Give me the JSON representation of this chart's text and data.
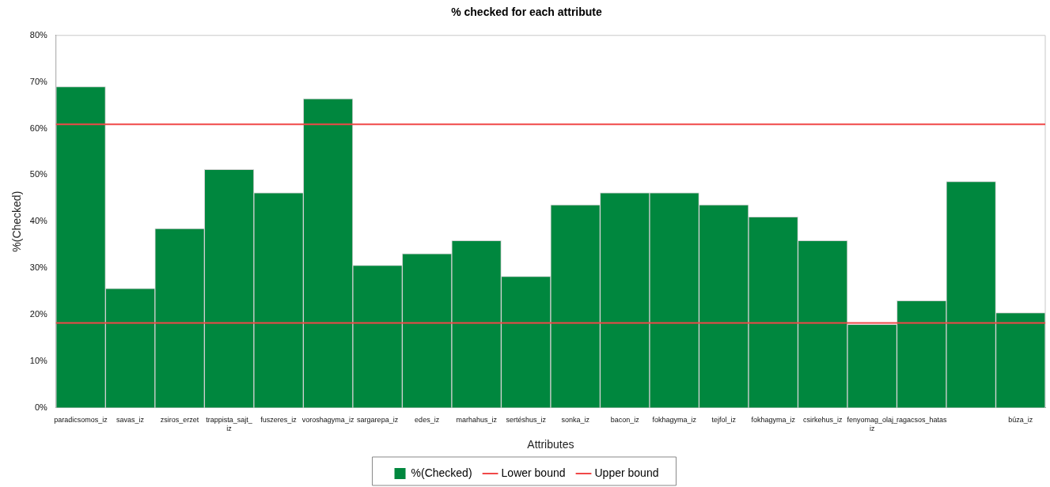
{
  "chart_data": {
    "type": "bar",
    "title": "% checked for each attribute",
    "xlabel": "Attributes",
    "ylabel": "%(Checked)",
    "categories": [
      "paradicsomos_iz",
      "savas_iz",
      "zsiros_erzet",
      "trappista_sajt_iz",
      "fuszeres_iz",
      "voroshagyma_iz",
      "sargarepa_iz",
      "edes_iz",
      "marhahus_iz",
      "sertéshus_iz",
      "sonka_iz",
      "bacon_iz",
      "fokhagyma_iz",
      "tejfol_iz",
      "fokhagyma_iz",
      "csirkehus_iz",
      "fenyomag_olaj_iz",
      "ragacsos_hatas",
      null,
      "búza_iz"
    ],
    "series": [
      {
        "name": "%(Checked)",
        "color": "#00873e",
        "values": [
          69.0,
          25.6,
          38.5,
          51.2,
          46.2,
          66.4,
          30.6,
          33.1,
          35.9,
          28.2,
          43.6,
          46.2,
          46.2,
          43.6,
          41.0,
          35.9,
          17.9,
          23.0,
          48.6,
          20.4
        ]
      }
    ],
    "ref_lines": [
      {
        "axis": "y",
        "value": 18.2,
        "label": "Lower bound",
        "color": "#f04848"
      },
      {
        "axis": "y",
        "value": 60.9,
        "label": "Upper bound",
        "color": "#f04848"
      }
    ],
    "ylim": [
      0,
      80
    ],
    "yticks": [
      {
        "value": 0,
        "label": "0%"
      },
      {
        "value": 10,
        "label": "10%"
      },
      {
        "value": 20,
        "label": "20%"
      },
      {
        "value": 30,
        "label": "30%"
      },
      {
        "value": 40,
        "label": "40%"
      },
      {
        "value": 50,
        "label": "50%"
      },
      {
        "value": 60,
        "label": "60%"
      },
      {
        "value": 70,
        "label": "70%"
      },
      {
        "value": 80,
        "label": "80%"
      }
    ],
    "grid": false,
    "legend": "bottom"
  }
}
